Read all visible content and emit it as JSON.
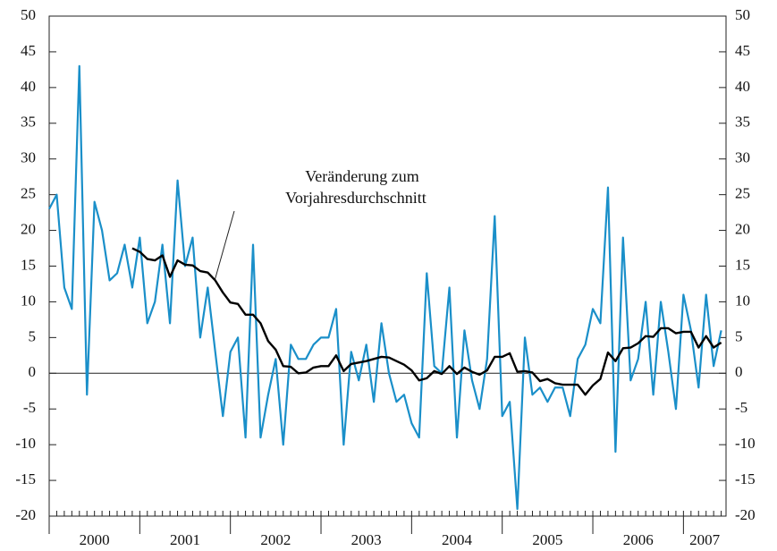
{
  "chart_data": {
    "type": "line",
    "x": [
      2000,
      2000.083,
      2000.167,
      2000.25,
      2000.333,
      2000.417,
      2000.5,
      2000.583,
      2000.667,
      2000.75,
      2000.833,
      2000.917,
      2001,
      2001.083,
      2001.167,
      2001.25,
      2001.333,
      2001.417,
      2001.5,
      2001.583,
      2001.667,
      2001.75,
      2001.833,
      2001.917,
      2002,
      2002.083,
      2002.167,
      2002.25,
      2002.333,
      2002.417,
      2002.5,
      2002.583,
      2002.667,
      2002.75,
      2002.833,
      2002.917,
      2003,
      2003.083,
      2003.167,
      2003.25,
      2003.333,
      2003.417,
      2003.5,
      2003.583,
      2003.667,
      2003.75,
      2003.833,
      2003.917,
      2004,
      2004.083,
      2004.167,
      2004.25,
      2004.333,
      2004.417,
      2004.5,
      2004.583,
      2004.667,
      2004.75,
      2004.833,
      2004.917,
      2005,
      2005.083,
      2005.167,
      2005.25,
      2005.333,
      2005.417,
      2005.5,
      2005.583,
      2005.667,
      2005.75,
      2005.833,
      2005.917,
      2006,
      2006.083,
      2006.167,
      2006.25,
      2006.333,
      2006.417,
      2006.5,
      2006.583,
      2006.667,
      2006.75,
      2006.833,
      2006.917,
      2007,
      2007.083,
      2007.167,
      2007.25,
      2007.333,
      2007.417
    ],
    "series": [
      {
        "color": "#1a8fc9",
        "values": [
          23,
          25,
          12,
          9,
          43,
          -3,
          24,
          20,
          13,
          14,
          18,
          12,
          19,
          7,
          10,
          18,
          7,
          27,
          15,
          19,
          5,
          12,
          3,
          -6,
          3,
          5,
          -9,
          18,
          -9,
          -3,
          2,
          -10,
          4,
          2,
          2,
          4,
          5,
          5,
          9,
          -10,
          3,
          -1,
          4,
          -4,
          7,
          0,
          -4,
          -3,
          -7,
          -9,
          14,
          1,
          0,
          12,
          -9,
          6,
          -1,
          -5,
          2,
          22,
          -6,
          -4,
          -19,
          5,
          -3,
          -2,
          -4,
          -2,
          -2,
          -6,
          2,
          4,
          9,
          7,
          26,
          -11,
          19,
          -1,
          2,
          10,
          -3,
          10,
          3,
          -5,
          11,
          6,
          -2,
          11,
          1,
          6
        ]
      },
      {
        "color": "#000000",
        "values": [
          null,
          null,
          null,
          null,
          null,
          null,
          null,
          null,
          null,
          null,
          null,
          17.5,
          17,
          16,
          15.8,
          16.5,
          13.5,
          15.8,
          15.2,
          15.1,
          14.3,
          14.1,
          13,
          11.3,
          9.9,
          9.7,
          8.2,
          8.2,
          7,
          4.5,
          3.3,
          1,
          0.9,
          0,
          0.1,
          0.8,
          1,
          1,
          2.5,
          0.3,
          1.3,
          1.5,
          1.7,
          2,
          2.3,
          2.2,
          1.7,
          1.2,
          0.4,
          -1,
          -0.7,
          0.3,
          -0.1,
          1,
          -0.1,
          0.8,
          0.2,
          -0.2,
          0.4,
          2.3,
          2.3,
          2.8,
          0.2,
          0.3,
          0.1,
          -1.1,
          -0.8,
          -1.4,
          -1.6,
          -1.6,
          -1.6,
          -3,
          -1.7,
          -0.8,
          2.9,
          1.7,
          3.5,
          3.6,
          4.2,
          5.2,
          5.1,
          6.3,
          6.3,
          5.6,
          5.8,
          5.8,
          3.6,
          5.2,
          3.6,
          4.3
        ]
      }
    ],
    "annotation": [
      "Veränderung zum",
      "Vorjahresdurchschnitt"
    ],
    "xlim": [
      2000,
      2007.47
    ],
    "xticks": [
      2000,
      2001,
      2002,
      2003,
      2004,
      2005,
      2006,
      2007
    ],
    "ylim": [
      -20,
      50
    ],
    "yticks": [
      -20,
      -15,
      -10,
      -5,
      0,
      5,
      10,
      15,
      20,
      25,
      30,
      35,
      40,
      45,
      50
    ],
    "y2lim": [
      -20,
      50
    ],
    "y2ticks": [
      -20,
      -15,
      -10,
      -5,
      0,
      5,
      10,
      15,
      20,
      25,
      30,
      35,
      40,
      45,
      50
    ]
  }
}
